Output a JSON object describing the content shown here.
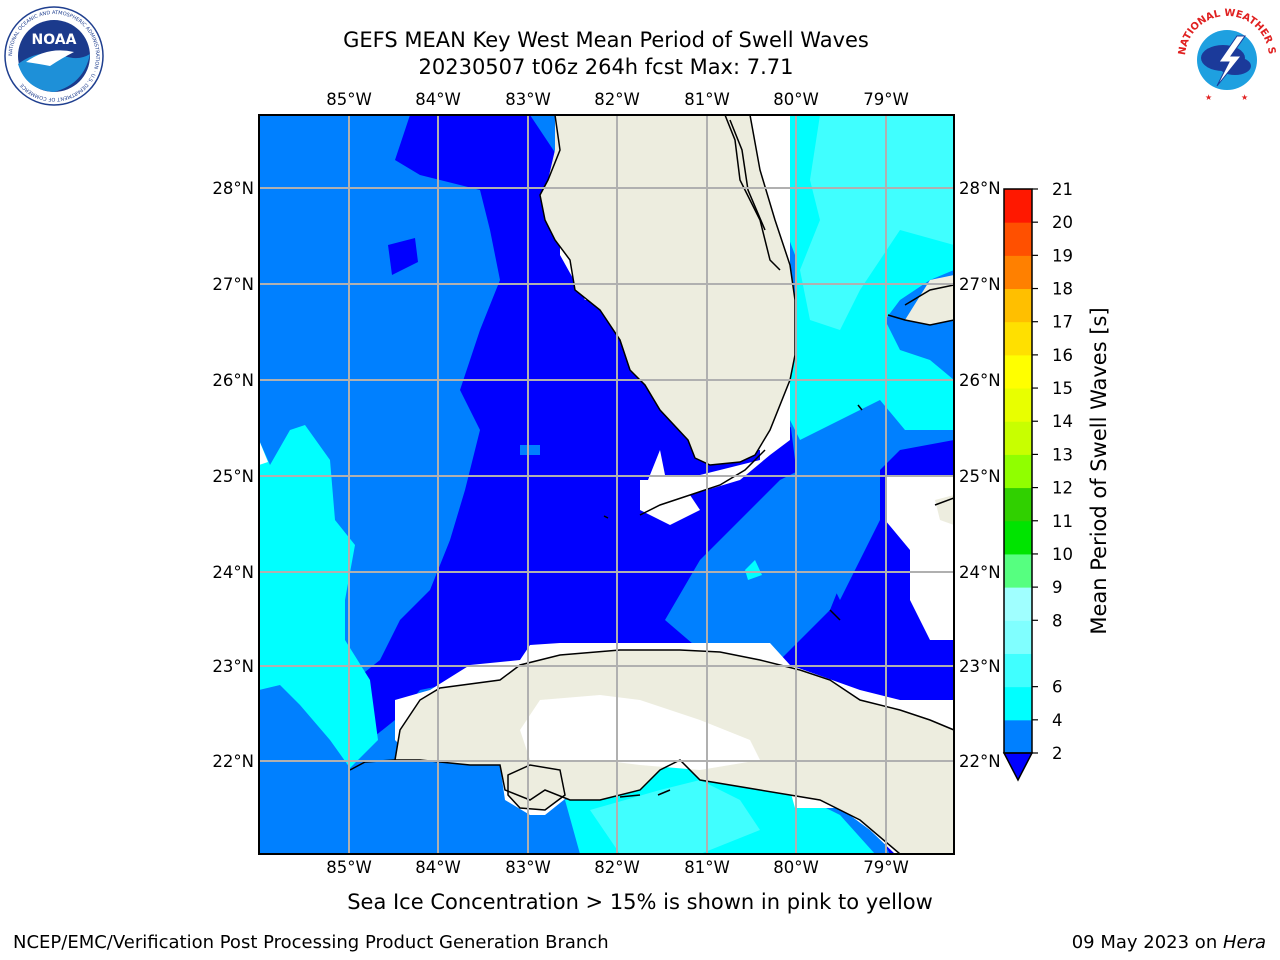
{
  "header": {
    "title_line1": "GEFS MEAN Key West Mean Period of Swell Waves",
    "title_line2": "20230507 t06z 264h fcst   Max: 7.71",
    "noaa_logo_text": "NOAA",
    "noaa_logo_ring_text": "NATIONAL OCEANIC AND ATMOSPHERIC ADMINISTRATION · U.S. DEPARTMENT OF COMMERCE",
    "nws_logo_ring_text": "NATIONAL WEATHER SERVICE"
  },
  "map": {
    "projection": "PlateCarree",
    "lon_range": [
      -86.0,
      -78.3
    ],
    "lat_range": [
      21.0,
      28.77
    ],
    "lon_ticks": [
      "85°W",
      "84°W",
      "83°W",
      "82°W",
      "81°W",
      "80°W",
      "79°W"
    ],
    "lat_ticks": [
      "28°N",
      "27°N",
      "26°N",
      "25°N",
      "24°N",
      "23°N",
      "22°N"
    ],
    "land_color": "#ededdf",
    "grid": true
  },
  "colorbar": {
    "label": "Mean Period of Swell Waves [s]",
    "tick_labels": [
      "2",
      "4",
      "6",
      "8",
      "9",
      "10",
      "11",
      "12",
      "13",
      "14",
      "15",
      "16",
      "17",
      "18",
      "19",
      "20",
      "21"
    ],
    "levels": [
      2,
      4,
      6,
      7,
      8,
      9,
      10,
      11,
      12,
      13,
      14,
      15,
      16,
      17,
      18,
      19,
      20,
      21
    ],
    "colors": [
      "#0080ff",
      "#00ffff",
      "#40ffff",
      "#80ffff",
      "#a0ffff",
      "#56ff80",
      "#00e400",
      "#30d000",
      "#90ff00",
      "#c8ff00",
      "#e8ff00",
      "#ffff00",
      "#ffe000",
      "#ffbf00",
      "#ff8000",
      "#ff5000",
      "#ff1800",
      "#ff0000"
    ],
    "extend_min_color": "#0000ff"
  },
  "caption": "Sea Ice Concentration > 15% is shown in pink to yellow",
  "footer": {
    "left": "NCEP/EMC/Verification Post Processing Product Generation Branch",
    "right_date": "09 May 2023 on ",
    "right_host": "Hera"
  }
}
